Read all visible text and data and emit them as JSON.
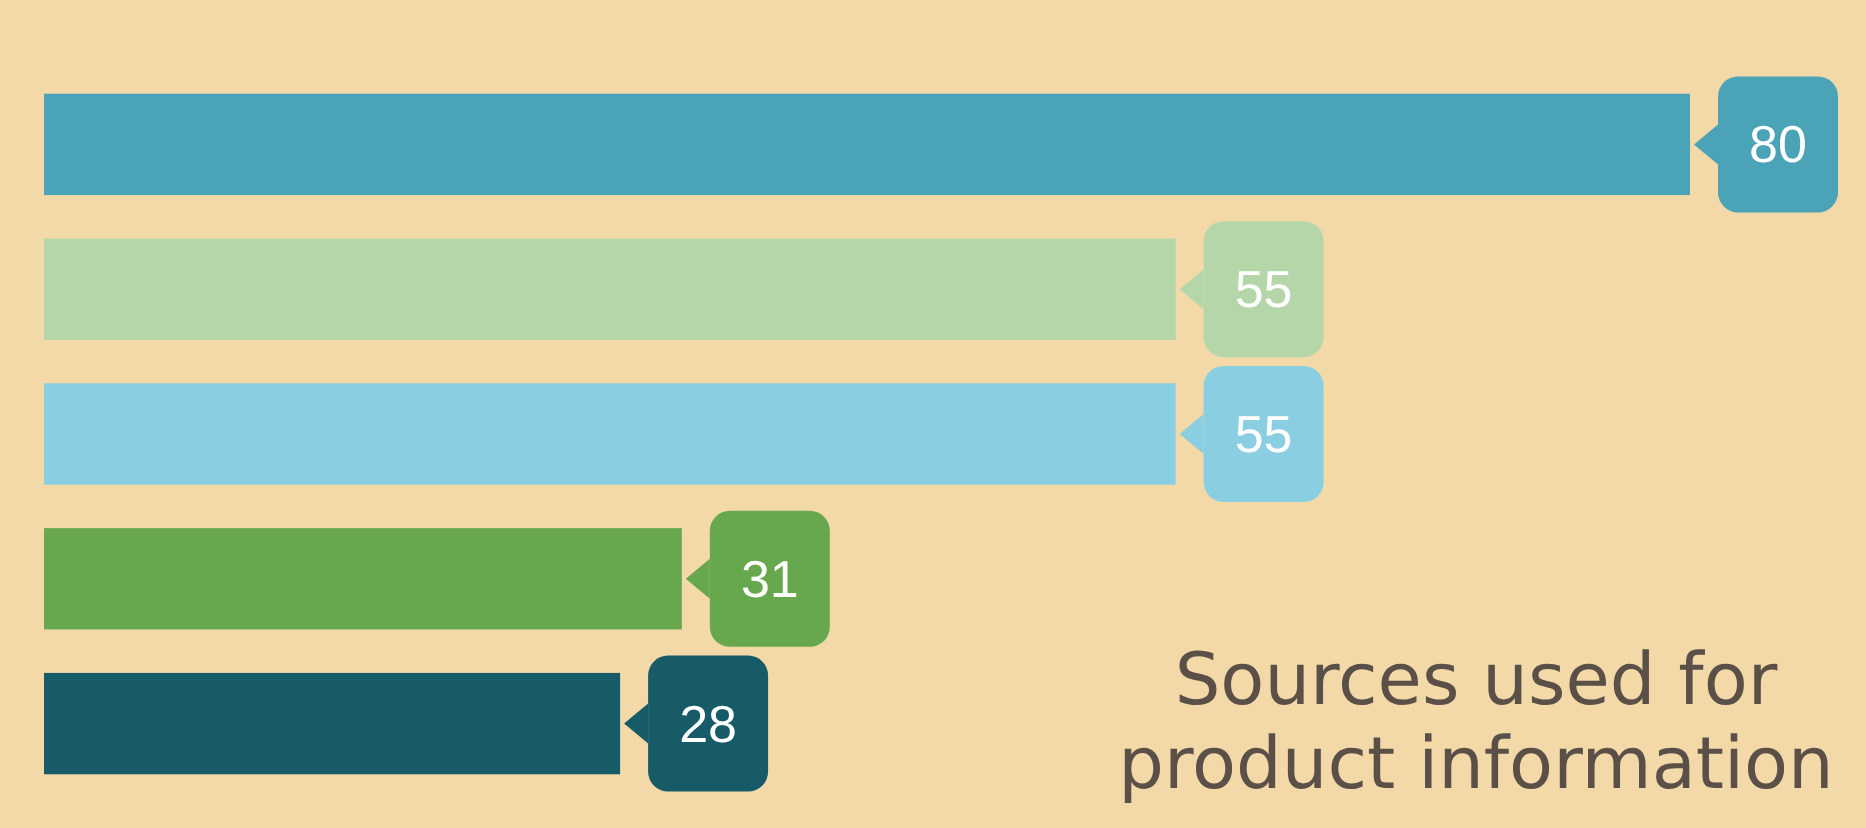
{
  "chart_data": {
    "type": "bar",
    "orientation": "horizontal",
    "title": "Sources used for product information",
    "categories": [
      null,
      null,
      null,
      null,
      null
    ],
    "values": [
      80,
      55,
      55,
      31,
      28
    ],
    "colors": [
      "#4aa3b6",
      "#b5d6a8",
      "#8acee1",
      "#67a84e",
      "#175a68"
    ],
    "data_labels": true
  }
}
